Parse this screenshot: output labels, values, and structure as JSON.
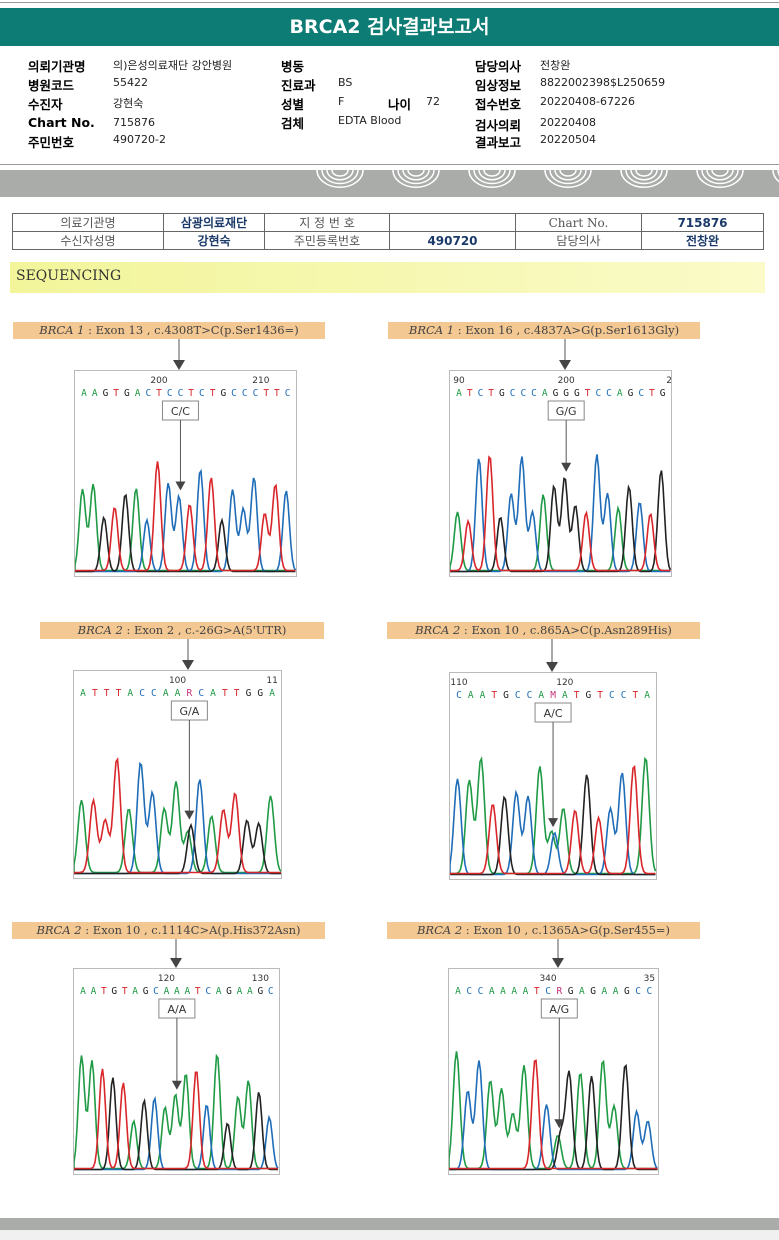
{
  "title": "BRCA2 검사결과보고서",
  "header": {
    "col1": [
      {
        "k": "의뢰기관명",
        "v": "의)은성의료재단 강안병원"
      },
      {
        "k": "병원코드",
        "v": "55422"
      },
      {
        "k": "수진자",
        "v": "강현숙"
      },
      {
        "k": "Chart No.",
        "v": "715876"
      },
      {
        "k": "주민번호",
        "v": "490720-2"
      }
    ],
    "col2": [
      {
        "k": "병동",
        "v": ""
      },
      {
        "k": "진료과",
        "v": "BS"
      },
      {
        "k": "성별",
        "v": "F"
      },
      {
        "k": "검체",
        "v": "EDTA Blood"
      }
    ],
    "age_label": "나이",
    "age": "72",
    "col3": [
      {
        "k": "담당의사",
        "v": "전창완"
      },
      {
        "k": "임상정보",
        "v": "8822002398$L250659"
      },
      {
        "k": "접수번호",
        "v": "20220408-67226"
      },
      {
        "k": "검사의뢰",
        "v": "20220408"
      },
      {
        "k": "결과보고",
        "v": "20220504"
      }
    ]
  },
  "patient_table": {
    "r1": [
      "의료기관명",
      "삼광의료재단",
      "지 정 번 호",
      "",
      "Chart No.",
      "715876"
    ],
    "r2": [
      "수신자성명",
      "강현숙",
      "주민등록번호",
      "490720",
      "담당의사",
      "전창완"
    ]
  },
  "section": "SEQUENCING",
  "colors": {
    "A": "#1f9a45",
    "C": "#1f6db8",
    "G": "#222222",
    "T": "#d8262b",
    "R": "#c2307a",
    "M": "#c2307a"
  },
  "panels": [
    {
      "gene": "BRCA 1",
      "desc": " : Exon 13 , c.4308T>C(p.Ser1436=)",
      "seq": "AAGTGACTCCTCTGCCCTTC",
      "ticks": [
        {
          "i": 7,
          "t": "200"
        },
        {
          "i": 16.5,
          "t": "210"
        }
      ],
      "variant": 9,
      "genotype": "C/C"
    },
    {
      "gene": "BRCA 1",
      "desc": " : Exon 16 , c.4837A>G(p.Ser1613Gly)",
      "seq": "ATCTGCCCAGGGTCCAGCTG",
      "ticks": [
        {
          "i": 0,
          "t": "90"
        },
        {
          "i": 10,
          "t": "200"
        },
        {
          "i": 19.6,
          "t": "2"
        }
      ],
      "variant": 10,
      "genotype": "G/G"
    },
    {
      "gene": "BRCA 2",
      "desc": " : Exon 2 , c.-26G>A(5'UTR)",
      "seq": "ATTTACCAARCATTGGA",
      "ticks": [
        {
          "i": 8,
          "t": "100"
        },
        {
          "i": 16,
          "t": "11"
        }
      ],
      "variant": 9,
      "genotype": "G/A"
    },
    {
      "gene": "BRCA 2",
      "desc": " : Exon 10 , c.865A>C(p.Asn289His)",
      "seq": "CAATGCCAMATGTCCTA",
      "ticks": [
        {
          "i": 0,
          "t": "110"
        },
        {
          "i": 9,
          "t": "120"
        }
      ],
      "variant": 8,
      "genotype": "A/C"
    },
    {
      "gene": "BRCA 2",
      "desc": " : Exon 10 , c.1114C>A(p.His372Asn)",
      "seq": "AATGTAGCAAATCAGAAGC",
      "ticks": [
        {
          "i": 8,
          "t": "120"
        },
        {
          "i": 17,
          "t": "130"
        }
      ],
      "variant": 9,
      "genotype": "A/A"
    },
    {
      "gene": "BRCA 2",
      "desc": " : Exon 10 , c.1365A>G(p.Ser455=)",
      "seq": "ACCAAAATCRGAGAAGCC",
      "ticks": [
        {
          "i": 8,
          "t": "340"
        },
        {
          "i": 17,
          "t": "35"
        }
      ],
      "variant": 9,
      "genotype": "A/G"
    }
  ]
}
